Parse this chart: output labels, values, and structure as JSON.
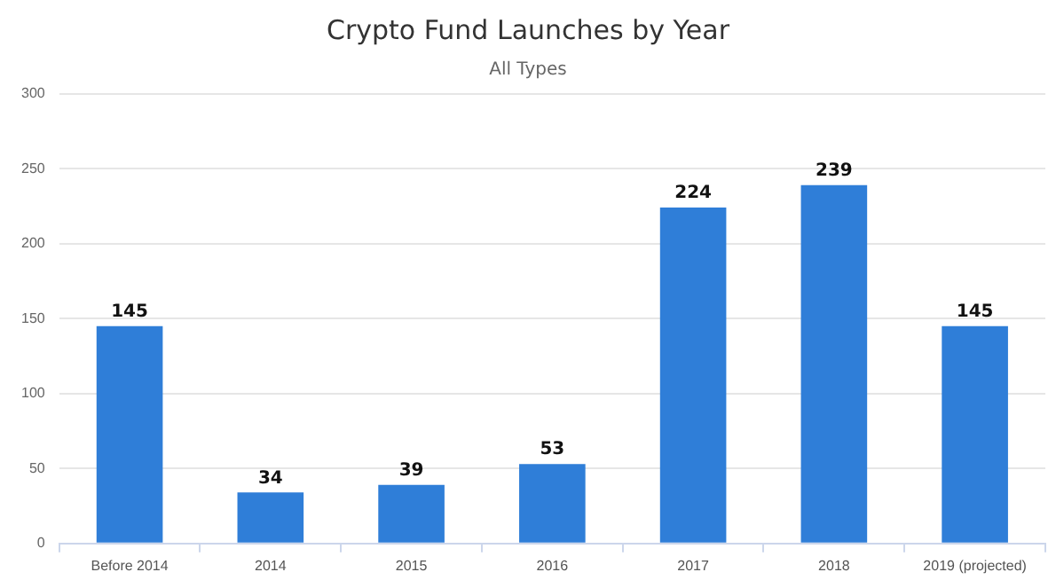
{
  "chart_data": {
    "type": "bar",
    "title": "Crypto Fund Launches by Year",
    "subtitle": "All Types",
    "categories": [
      "Before 2014",
      "2014",
      "2015",
      "2016",
      "2017",
      "2018",
      "2019 (projected)"
    ],
    "values": [
      145,
      34,
      39,
      53,
      224,
      239,
      145
    ],
    "color": "#2f7ed8",
    "ylim": [
      0,
      300
    ],
    "yticks": [
      0,
      50,
      100,
      150,
      200,
      250,
      300
    ],
    "grid": "y",
    "data_labels": true
  }
}
